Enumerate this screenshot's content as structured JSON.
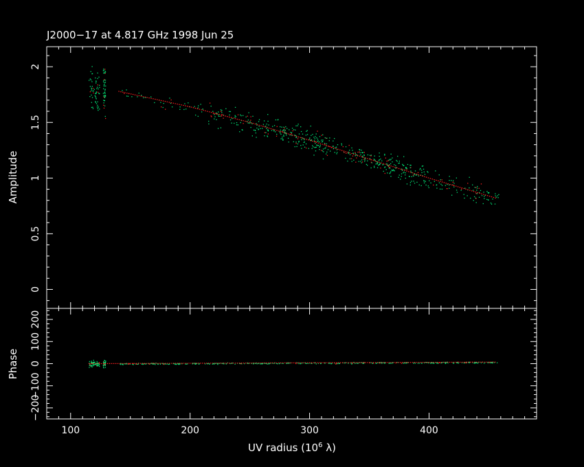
{
  "chart_data": {
    "type": "scatter",
    "title": "J2000−17 at 4.817 GHz 1998 Jun 25",
    "xlabel_prefix": "UV radius  (10",
    "xlabel_exp": "6",
    "xlabel_suffix": " λ)",
    "x_range": [
      80,
      490
    ],
    "x_ticks": [
      "100",
      "200",
      "300",
      "400"
    ],
    "colors": {
      "background": "#000000",
      "axes": "#ffffff",
      "data": "#00e676",
      "model": "#ff2020"
    },
    "amplitude": {
      "ylabel": "Amplitude",
      "y_range": [
        -0.17,
        2.18
      ],
      "y_ticks": [
        "0",
        "0.5",
        "1",
        "1.5",
        "2"
      ],
      "model": {
        "x": [
          140,
          200,
          250,
          300,
          350,
          400,
          456
        ],
        "y": [
          1.78,
          1.64,
          1.5,
          1.34,
          1.17,
          1.0,
          0.82
        ]
      },
      "clusters": [
        {
          "x": [
            115,
            124
          ],
          "center": 1.78,
          "spread": 0.18,
          "count": 60
        },
        {
          "x": [
            127,
            129
          ],
          "center": 1.8,
          "spread": 0.28,
          "count": 45
        },
        {
          "x": [
            140,
            215
          ],
          "center": 0,
          "spread": 0.06,
          "count": 40
        },
        {
          "x": [
            215,
            275
          ],
          "center": 0,
          "spread": 0.1,
          "count": 120
        },
        {
          "x": [
            275,
            315
          ],
          "center": 0,
          "spread": 0.11,
          "count": 140
        },
        {
          "x": [
            315,
            360
          ],
          "center": 0,
          "spread": 0.08,
          "count": 110
        },
        {
          "x": [
            360,
            395
          ],
          "center": 0,
          "spread": 0.1,
          "count": 110
        },
        {
          "x": [
            395,
            458
          ],
          "center": 0,
          "spread": 0.08,
          "count": 100
        }
      ]
    },
    "phase": {
      "ylabel": "Phase",
      "y_range": [
        -250,
        250
      ],
      "y_ticks": [
        "−200",
        "−100",
        "0",
        "100",
        "200"
      ],
      "model": {
        "x": [
          115,
          456
        ],
        "y": [
          0,
          7
        ]
      },
      "clusters": [
        {
          "x": [
            115,
            124
          ],
          "center": 0,
          "spread": 15,
          "count": 60
        },
        {
          "x": [
            127,
            129
          ],
          "center": 0,
          "spread": 18,
          "count": 30
        },
        {
          "x": [
            140,
            458
          ],
          "center": 0,
          "spread": 3,
          "count": 400
        }
      ]
    }
  }
}
